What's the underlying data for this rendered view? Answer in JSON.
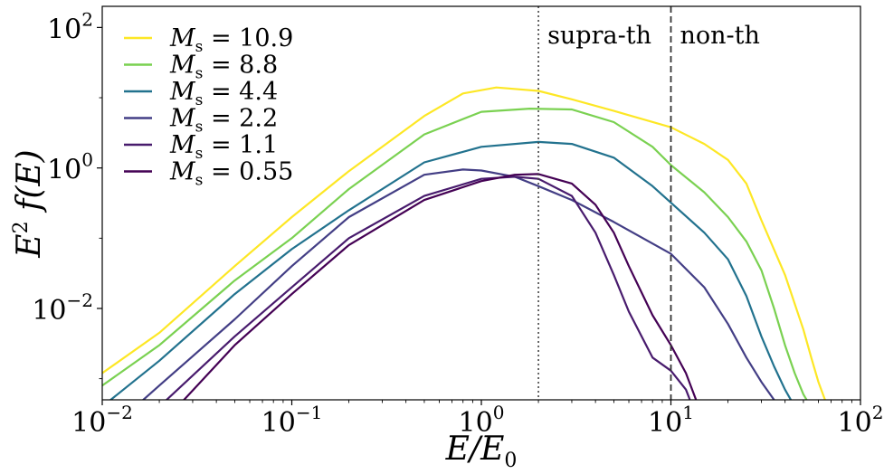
{
  "chart_data": {
    "type": "line",
    "xscale": "log",
    "yscale": "log",
    "xlim": [
      0.01,
      100
    ],
    "ylim": [
      0.0005,
      200
    ],
    "x_ticks": [
      {
        "value": 0.01,
        "base": "10",
        "exp": "−2"
      },
      {
        "value": 0.1,
        "base": "10",
        "exp": "−1"
      },
      {
        "value": 1,
        "base": "10",
        "exp": "0"
      },
      {
        "value": 10,
        "base": "10",
        "exp": "1"
      },
      {
        "value": 100,
        "base": "10",
        "exp": "2"
      }
    ],
    "y_ticks": [
      {
        "value": 0.01,
        "base": "10",
        "exp": "−2"
      },
      {
        "value": 1,
        "base": "10",
        "exp": "0"
      },
      {
        "value": 100,
        "base": "10",
        "exp": "2"
      }
    ],
    "xlabel": "E/E0",
    "ylabel": "E2 f(E)",
    "vlines": [
      {
        "x": 2,
        "style": "dotted",
        "label": "supra-th"
      },
      {
        "x": 10,
        "style": "dashed",
        "label": "non-th"
      }
    ],
    "legend": {
      "placement": "top-left"
    },
    "series": [
      {
        "name": "M_s = 10.9",
        "legend_label": "Ms = 10.9",
        "color": "#fde725",
        "x": [
          0.01,
          0.02,
          0.05,
          0.1,
          0.2,
          0.5,
          0.8,
          1.2,
          2,
          3,
          5,
          10,
          15,
          20,
          25,
          30,
          40,
          50,
          55,
          60,
          65
        ],
        "y": [
          0.0012,
          0.0045,
          0.04,
          0.2,
          0.9,
          5.5,
          11.5,
          14,
          12.5,
          9.5,
          6.5,
          3.8,
          2.2,
          1.3,
          0.6,
          0.18,
          0.03,
          0.005,
          0.002,
          0.0009,
          0.0005
        ]
      },
      {
        "name": "M_s = 8.8",
        "legend_label": "Ms = 8.8",
        "color": "#7ad151",
        "x": [
          0.01,
          0.02,
          0.05,
          0.1,
          0.2,
          0.5,
          1,
          1.8,
          3,
          5,
          8,
          10,
          15,
          20,
          25,
          30,
          35,
          40,
          45,
          50,
          52
        ],
        "y": [
          0.0008,
          0.003,
          0.025,
          0.1,
          0.5,
          3,
          6.3,
          7,
          6.8,
          4.5,
          2,
          1.1,
          0.45,
          0.2,
          0.09,
          0.035,
          0.01,
          0.003,
          0.0012,
          0.0006,
          0.0005
        ]
      },
      {
        "name": "M_s = 4.4",
        "legend_label": "Ms = 4.4",
        "color": "#22728e",
        "x": [
          0.01,
          0.02,
          0.05,
          0.1,
          0.2,
          0.5,
          1,
          2,
          3,
          5,
          8,
          10,
          15,
          20,
          25,
          30,
          35,
          40,
          45
        ],
        "y": [
          0.0004,
          0.0018,
          0.016,
          0.07,
          0.25,
          1.2,
          2,
          2.35,
          2.2,
          1.4,
          0.55,
          0.32,
          0.12,
          0.05,
          0.015,
          0.004,
          0.0015,
          0.0007,
          0.0004
        ]
      },
      {
        "name": "M_s = 2.2",
        "legend_label": "Ms = 2.2",
        "color": "#433e85",
        "x": [
          0.015,
          0.02,
          0.05,
          0.1,
          0.2,
          0.5,
          0.8,
          1,
          1.5,
          2,
          3,
          5,
          10,
          15,
          20,
          25,
          30,
          35,
          40
        ],
        "y": [
          0.0004,
          0.0008,
          0.007,
          0.04,
          0.2,
          0.8,
          0.95,
          0.92,
          0.75,
          0.55,
          0.35,
          0.17,
          0.06,
          0.02,
          0.006,
          0.002,
          0.0009,
          0.0005,
          0.0004
        ]
      },
      {
        "name": "M_s = 1.1",
        "legend_label": "Ms = 1.1",
        "color": "#481b6d",
        "x": [
          0.02,
          0.05,
          0.1,
          0.2,
          0.5,
          1,
          1.5,
          2,
          3,
          4,
          5,
          6,
          8,
          10,
          12,
          13
        ],
        "y": [
          0.0004,
          0.004,
          0.02,
          0.1,
          0.4,
          0.7,
          0.75,
          0.7,
          0.4,
          0.12,
          0.03,
          0.009,
          0.002,
          0.0013,
          0.0007,
          0.0004
        ]
      },
      {
        "name": "M_s = 0.55",
        "legend_label": "Ms = 0.55",
        "color": "#440154",
        "x": [
          0.025,
          0.05,
          0.1,
          0.2,
          0.5,
          1,
          1.5,
          2,
          3,
          4,
          5,
          6,
          8,
          10,
          12,
          14
        ],
        "y": [
          0.0004,
          0.003,
          0.016,
          0.08,
          0.35,
          0.65,
          0.8,
          0.82,
          0.6,
          0.3,
          0.12,
          0.04,
          0.008,
          0.003,
          0.0012,
          0.0004
        ]
      }
    ]
  }
}
